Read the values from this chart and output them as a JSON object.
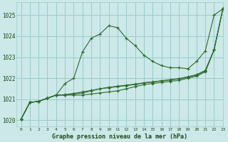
{
  "title": "Graphe pression niveau de la mer (hPa)",
  "bg_color": "#cce8e8",
  "grid_color": "#99cccc",
  "line_color": "#2d6a2d",
  "xlim": [
    -0.5,
    23
  ],
  "ylim": [
    1019.7,
    1025.6
  ],
  "yticks": [
    1020,
    1021,
    1022,
    1023,
    1024,
    1025
  ],
  "xticks": [
    0,
    1,
    2,
    3,
    4,
    5,
    6,
    7,
    8,
    9,
    10,
    11,
    12,
    13,
    14,
    15,
    16,
    17,
    18,
    19,
    20,
    21,
    22,
    23
  ],
  "series": [
    [
      1020.05,
      1020.85,
      1020.9,
      1021.05,
      1021.2,
      1021.75,
      1022.0,
      1023.25,
      1023.9,
      1024.1,
      1024.5,
      1024.4,
      1023.9,
      1023.55,
      1023.1,
      1022.8,
      1022.6,
      1022.5,
      1022.5,
      1022.45,
      1022.8,
      1023.3,
      1025.0,
      1025.3
    ],
    [
      1020.05,
      1020.85,
      1020.9,
      1021.05,
      1021.2,
      1021.2,
      1021.2,
      1021.2,
      1021.25,
      1021.3,
      1021.35,
      1021.4,
      1021.5,
      1021.6,
      1021.7,
      1021.75,
      1021.8,
      1021.85,
      1021.9,
      1022.0,
      1022.1,
      1022.3,
      1023.35,
      1025.3
    ],
    [
      1020.05,
      1020.85,
      1020.9,
      1021.05,
      1021.2,
      1021.2,
      1021.25,
      1021.3,
      1021.4,
      1021.5,
      1021.55,
      1021.6,
      1021.65,
      1021.7,
      1021.78,
      1021.82,
      1021.87,
      1021.92,
      1021.97,
      1022.05,
      1022.15,
      1022.35,
      1023.35,
      1025.3
    ],
    [
      1020.05,
      1020.85,
      1020.9,
      1021.05,
      1021.2,
      1021.22,
      1021.28,
      1021.35,
      1021.42,
      1021.5,
      1021.57,
      1021.62,
      1021.67,
      1021.72,
      1021.78,
      1021.83,
      1021.88,
      1021.93,
      1021.98,
      1022.07,
      1022.17,
      1022.37,
      1023.35,
      1025.3
    ]
  ]
}
